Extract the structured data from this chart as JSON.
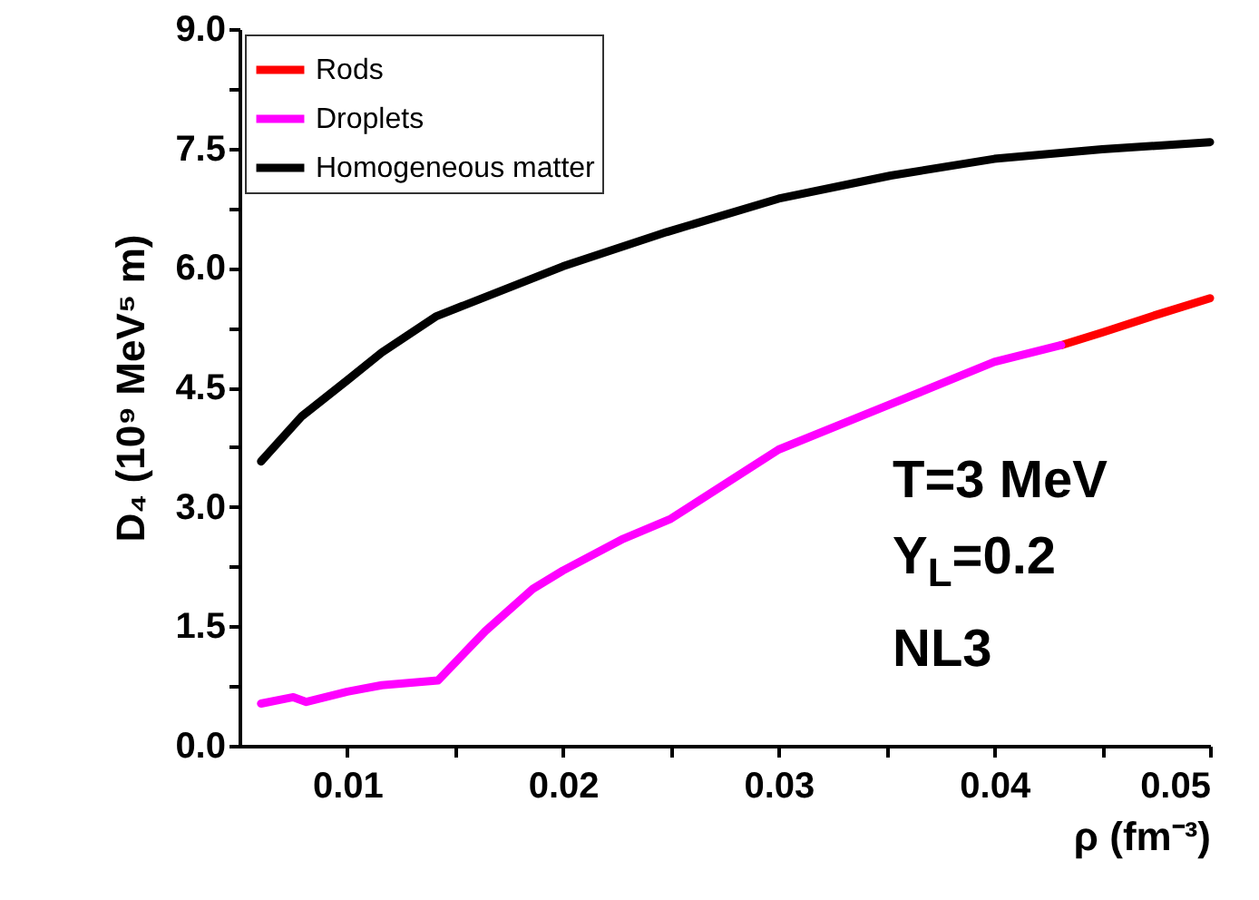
{
  "chart_data": {
    "type": "line",
    "xlabel": "ρ (fm⁻³)",
    "ylabel": "D₄ (10⁹ MeV⁵ m)",
    "xlim": [
      0.005,
      0.05
    ],
    "ylim": [
      0,
      9
    ],
    "xticks": [
      0.01,
      {
        "value": 0.015,
        "label": null
      },
      0.02,
      {
        "value": 0.025,
        "label": null
      },
      0.03,
      {
        "value": 0.035,
        "label": null
      },
      0.04,
      {
        "value": 0.045,
        "label": null
      },
      0.05
    ],
    "yticks": [
      {
        "value": 0,
        "label": "0.0"
      },
      {
        "value": 0.75,
        "label": null
      },
      1.5,
      {
        "value": 2.25,
        "label": null
      },
      {
        "value": 3,
        "label": "3.0"
      },
      {
        "value": 3.75,
        "label": null
      },
      4.5,
      {
        "value": 5.25,
        "label": null
      },
      {
        "value": 6,
        "label": "6.0"
      },
      {
        "value": 6.75,
        "label": null
      },
      7.5,
      {
        "value": 8.25,
        "label": null
      },
      {
        "value": 9,
        "label": "9.0"
      }
    ],
    "legend": "top left",
    "grid": false,
    "annotations": [
      "T=3 MeV",
      "Y$_{L}$=0.2",
      "NL3"
    ],
    "series": [
      {
        "name": "Rods",
        "color": "#ff0000",
        "x": [
          0.0431,
          0.045,
          0.0475,
          0.05
        ],
        "values": [
          5.03,
          5.19,
          5.41,
          5.62
        ]
      },
      {
        "name": "Droplets",
        "color": "#ff00ff",
        "x": [
          0.006,
          0.0075,
          0.0081,
          0.01,
          0.0116,
          0.0142,
          0.0164,
          0.0186,
          0.02,
          0.0228,
          0.025,
          0.03,
          0.0352,
          0.04,
          0.0431
        ],
        "values": [
          0.53,
          0.61,
          0.55,
          0.68,
          0.76,
          0.82,
          1.44,
          1.97,
          2.2,
          2.6,
          2.85,
          3.72,
          4.29,
          4.82,
          5.03
        ]
      },
      {
        "name": "Homogeneous matter",
        "color": "#000000",
        "x": [
          0.006,
          0.0079,
          0.01,
          0.0116,
          0.0141,
          0.02,
          0.0248,
          0.03,
          0.0352,
          0.04,
          0.045,
          0.05
        ],
        "values": [
          3.57,
          4.14,
          4.59,
          4.94,
          5.39,
          6.02,
          6.45,
          6.87,
          7.16,
          7.37,
          7.49,
          7.58
        ]
      }
    ]
  }
}
